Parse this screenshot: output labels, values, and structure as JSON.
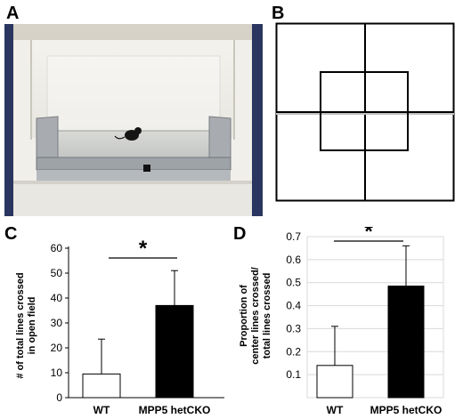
{
  "panels": {
    "a": {
      "letter": "A"
    },
    "b": {
      "letter": "B"
    },
    "c": {
      "letter": "C"
    },
    "d": {
      "letter": "D"
    }
  },
  "chart_data": [
    {
      "type": "bar",
      "panel": "C",
      "categories": [
        "WT",
        "MPP5 hetCKO"
      ],
      "values": [
        9.5,
        37
      ],
      "error": [
        14,
        14
      ],
      "bar_colors": [
        "#ffffff",
        "#000000"
      ],
      "ylabel_lines": [
        "# of  total lines crossed",
        "in open field"
      ],
      "ylim": [
        0,
        60
      ],
      "yticks": [
        "0",
        "10",
        "20",
        "30",
        "40",
        "50",
        "60"
      ],
      "significance": "*",
      "grid": false
    },
    {
      "type": "bar",
      "panel": "D",
      "categories": [
        "WT",
        "MPP5 hetCKO"
      ],
      "values": [
        0.14,
        0.485
      ],
      "error": [
        0.17,
        0.175
      ],
      "bar_colors": [
        "#ffffff",
        "#000000"
      ],
      "ylabel_lines": [
        "Proportion of",
        "center lines crossed/",
        "total lines crossed"
      ],
      "ylim": [
        0,
        0.7
      ],
      "yticks": [
        "0.1",
        "0.2",
        "0.3",
        "0.4",
        "0.5",
        "0.6",
        "0.7"
      ],
      "significance": "*",
      "grid": true
    }
  ]
}
